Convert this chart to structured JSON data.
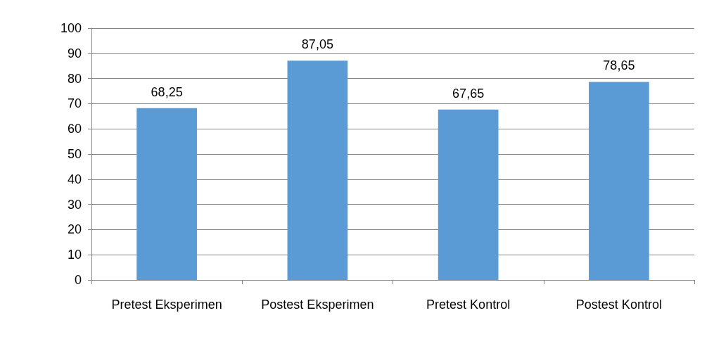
{
  "chart_data": {
    "type": "bar",
    "categories": [
      "Pretest Eksperimen",
      "Postest Eksperimen",
      "Pretest Kontrol",
      "Postest Kontrol"
    ],
    "values": [
      68.25,
      87.05,
      67.65,
      78.65
    ],
    "value_labels": [
      "68,25",
      "87,05",
      "67,65",
      "78,65"
    ],
    "color": "#5b9bd5",
    "ylim": [
      0,
      100
    ],
    "yticks": [
      0,
      10,
      20,
      30,
      40,
      50,
      60,
      70,
      80,
      90,
      100
    ],
    "grid": "y"
  }
}
